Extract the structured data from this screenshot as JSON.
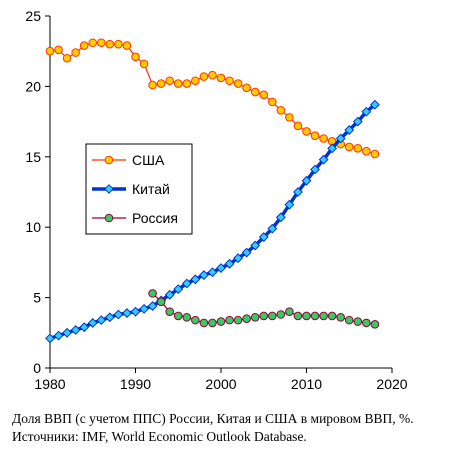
{
  "caption": {
    "line1": "Доля ВВП (с учетом ППС) России, Китая и США в  мировом ВВП, %.",
    "line2": "Источники: IMF, World Economic Outlook Database."
  },
  "chart_data": {
    "type": "line",
    "title": "",
    "xlabel": "",
    "ylabel": "",
    "xlim": [
      1980,
      2020
    ],
    "ylim": [
      0,
      25
    ],
    "x_ticks": [
      1980,
      1990,
      2000,
      2010,
      2020
    ],
    "y_ticks": [
      0,
      5,
      10,
      15,
      20,
      25
    ],
    "grid": false,
    "legend_position": "center-left",
    "series": [
      {
        "name": "США",
        "color": "#ff3300",
        "marker_fill": "#ffcc00",
        "marker": "circle",
        "line_width": 1.2,
        "x": [
          1980,
          1981,
          1982,
          1983,
          1984,
          1985,
          1986,
          1987,
          1988,
          1989,
          1990,
          1991,
          1992,
          1993,
          1994,
          1995,
          1996,
          1997,
          1998,
          1999,
          2000,
          2001,
          2002,
          2003,
          2004,
          2005,
          2006,
          2007,
          2008,
          2009,
          2010,
          2011,
          2012,
          2013,
          2014,
          2015,
          2016,
          2017,
          2018
        ],
        "values": [
          22.5,
          22.6,
          22.0,
          22.4,
          22.9,
          23.1,
          23.1,
          23.0,
          23.0,
          22.9,
          22.1,
          21.6,
          20.1,
          20.2,
          20.4,
          20.2,
          20.2,
          20.4,
          20.7,
          20.8,
          20.6,
          20.4,
          20.2,
          19.9,
          19.6,
          19.4,
          18.9,
          18.3,
          17.8,
          17.2,
          16.8,
          16.5,
          16.3,
          16.1,
          15.9,
          15.7,
          15.6,
          15.4,
          15.2
        ]
      },
      {
        "name": "Китай",
        "color": "#0033cc",
        "marker_fill": "#33ccff",
        "marker": "diamond",
        "line_width": 3.5,
        "x": [
          1980,
          1981,
          1982,
          1983,
          1984,
          1985,
          1986,
          1987,
          1988,
          1989,
          1990,
          1991,
          1992,
          1993,
          1994,
          1995,
          1996,
          1997,
          1998,
          1999,
          2000,
          2001,
          2002,
          2003,
          2004,
          2005,
          2006,
          2007,
          2008,
          2009,
          2010,
          2011,
          2012,
          2013,
          2014,
          2015,
          2016,
          2017,
          2018
        ],
        "values": [
          2.1,
          2.3,
          2.5,
          2.7,
          2.9,
          3.2,
          3.4,
          3.6,
          3.8,
          3.9,
          4.0,
          4.2,
          4.4,
          4.8,
          5.2,
          5.6,
          6.0,
          6.3,
          6.6,
          6.8,
          7.1,
          7.4,
          7.8,
          8.2,
          8.7,
          9.3,
          9.9,
          10.7,
          11.6,
          12.5,
          13.3,
          14.1,
          14.8,
          15.6,
          16.3,
          16.9,
          17.5,
          18.2,
          18.7
        ]
      },
      {
        "name": "Россия",
        "color": "#990033",
        "marker_fill": "#33cc66",
        "marker": "circle",
        "line_width": 1.2,
        "x": [
          1992,
          1993,
          1994,
          1995,
          1996,
          1997,
          1998,
          1999,
          2000,
          2001,
          2002,
          2003,
          2004,
          2005,
          2006,
          2007,
          2008,
          2009,
          2010,
          2011,
          2012,
          2013,
          2014,
          2015,
          2016,
          2017,
          2018
        ],
        "values": [
          5.3,
          4.7,
          4.0,
          3.7,
          3.6,
          3.4,
          3.2,
          3.2,
          3.3,
          3.4,
          3.4,
          3.5,
          3.6,
          3.7,
          3.7,
          3.8,
          4.0,
          3.7,
          3.7,
          3.7,
          3.7,
          3.7,
          3.6,
          3.4,
          3.3,
          3.2,
          3.1
        ]
      }
    ]
  }
}
